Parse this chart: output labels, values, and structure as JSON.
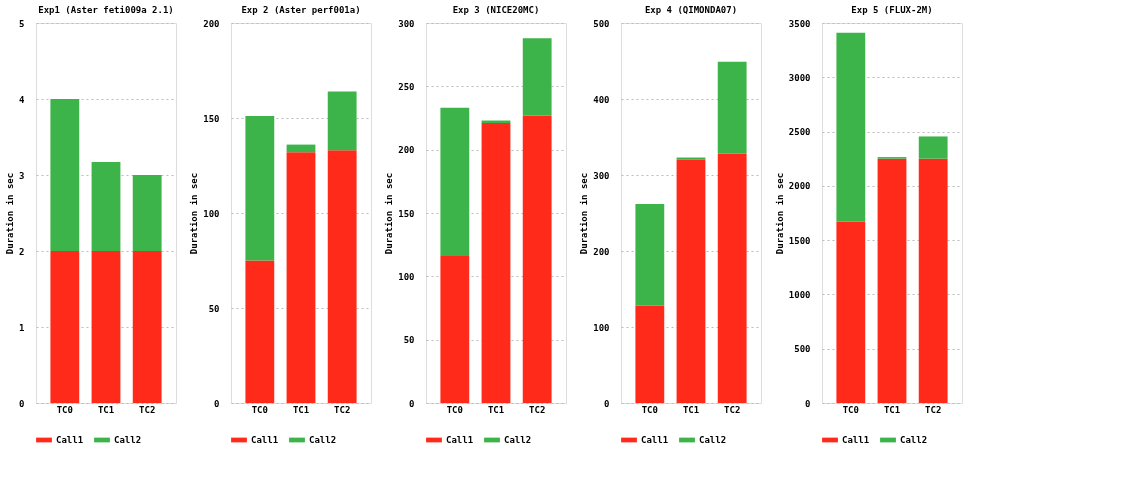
{
  "chart_data": [
    {
      "type": "bar",
      "stacked": true,
      "title": "Exp1 (Aster feti009a 2.1)",
      "ylabel": "Duration in sec",
      "categories": [
        "TC0",
        "TC1",
        "TC2"
      ],
      "ylim": [
        0,
        5
      ],
      "yticks": [
        0,
        1,
        2,
        3,
        4,
        5
      ],
      "grid": "y",
      "legend": "bottom",
      "series": [
        {
          "name": "Call1",
          "color": "#ff2a1a",
          "values": [
            2,
            2,
            2
          ]
        },
        {
          "name": "Call2",
          "color": "#3cb44a",
          "values": [
            2,
            1.17,
            1.0
          ]
        }
      ]
    },
    {
      "type": "bar",
      "stacked": true,
      "title": "Exp 2 (Aster perf001a)",
      "ylabel": "Duration in sec",
      "categories": [
        "TC0",
        "TC1",
        "TC2"
      ],
      "ylim": [
        0,
        200
      ],
      "yticks": [
        0,
        50,
        100,
        150,
        200
      ],
      "grid": "y",
      "legend": "bottom",
      "series": [
        {
          "name": "Call1",
          "color": "#ff2a1a",
          "values": [
            75,
            132,
            133
          ]
        },
        {
          "name": "Call2",
          "color": "#3cb44a",
          "values": [
            76,
            4,
            31
          ]
        }
      ]
    },
    {
      "type": "bar",
      "stacked": true,
      "title": "Exp 3 (NICE20MC)",
      "ylabel": "Duration in sec",
      "categories": [
        "TC0",
        "TC1",
        "TC2"
      ],
      "ylim": [
        0,
        300
      ],
      "yticks": [
        0,
        50,
        100,
        150,
        200,
        250,
        300
      ],
      "grid": "y",
      "legend": "bottom",
      "series": [
        {
          "name": "Call1",
          "color": "#ff2a1a",
          "values": [
            116,
            221,
            227
          ]
        },
        {
          "name": "Call2",
          "color": "#3cb44a",
          "values": [
            117,
            2,
            61
          ]
        }
      ]
    },
    {
      "type": "bar",
      "stacked": true,
      "title": "Exp 4 (QIMONDA07)",
      "ylabel": "Duration in sec",
      "categories": [
        "TC0",
        "TC1",
        "TC2"
      ],
      "ylim": [
        0,
        500
      ],
      "yticks": [
        0,
        100,
        200,
        300,
        400,
        500
      ],
      "grid": "y",
      "legend": "bottom",
      "series": [
        {
          "name": "Call1",
          "color": "#ff2a1a",
          "values": [
            128,
            320,
            328
          ]
        },
        {
          "name": "Call2",
          "color": "#3cb44a",
          "values": [
            134,
            3,
            121
          ]
        }
      ]
    },
    {
      "type": "bar",
      "stacked": true,
      "title": "Exp 5 (FLUX-2M)",
      "ylabel": "Duration in sec",
      "categories": [
        "TC0",
        "TC1",
        "TC2"
      ],
      "ylim": [
        0,
        3500
      ],
      "yticks": [
        0,
        500,
        1000,
        1500,
        2000,
        2500,
        3000,
        3500
      ],
      "grid": "y",
      "legend": "bottom",
      "series": [
        {
          "name": "Call1",
          "color": "#ff2a1a",
          "values": [
            1670,
            2250,
            2250
          ]
        },
        {
          "name": "Call2",
          "color": "#3cb44a",
          "values": [
            1740,
            15,
            205
          ]
        }
      ]
    }
  ]
}
